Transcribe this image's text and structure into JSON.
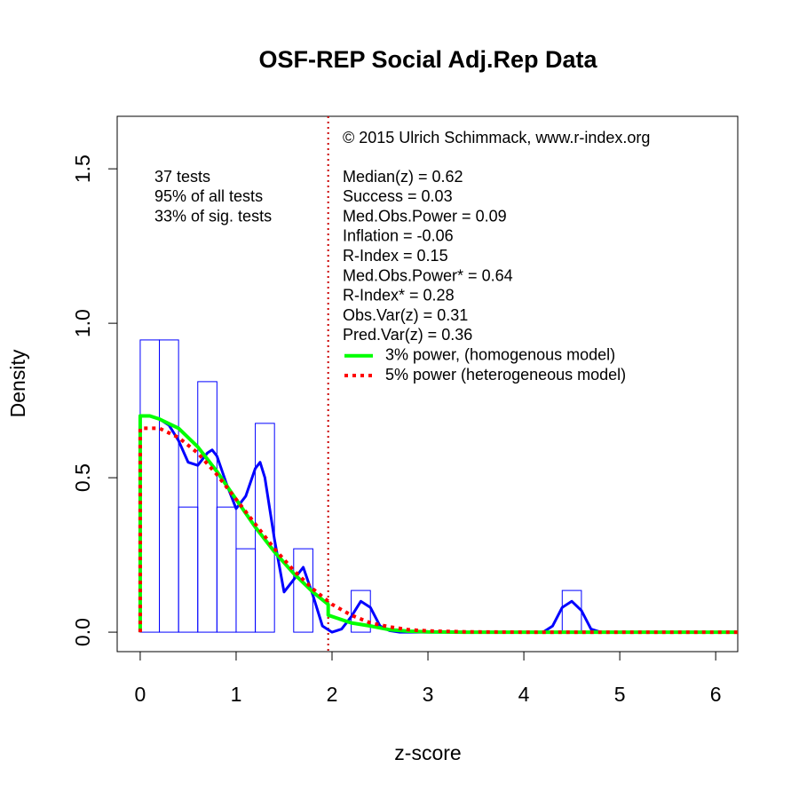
{
  "chart_data": {
    "type": "histogram",
    "title": "OSF-REP Social Adj.Rep Data",
    "xlabel": "z-score",
    "ylabel": "Density",
    "bins": [
      0,
      0.2,
      0.4,
      0.6,
      0.8,
      1.0,
      1.2,
      1.4,
      1.6,
      1.8,
      2.0,
      2.2,
      2.4,
      2.6,
      2.8,
      3.0,
      3.2,
      3.4,
      3.6,
      3.8,
      4.0,
      4.2,
      4.4,
      4.6
    ],
    "values": [
      0.946,
      0.946,
      0.405,
      0.811,
      0.405,
      0.27,
      0.676,
      0,
      0.27,
      0,
      0,
      0.135,
      0,
      0,
      0,
      0,
      0,
      0,
      0,
      0,
      0,
      0,
      0.135
    ],
    "color": "#0000ff",
    "xlim": [
      -0.24,
      6.23
    ],
    "ylim": [
      -0.063,
      1.67
    ],
    "xticks": [
      0,
      1,
      2,
      3,
      4,
      5,
      6
    ],
    "yticks": [
      {
        "value": 0,
        "label": "0.0"
      },
      0.5,
      {
        "value": 1,
        "label": "1.0"
      },
      1.5
    ],
    "vline": {
      "x": 1.96,
      "color": "#cc0000"
    },
    "series": [
      {
        "color": "#0000ff",
        "style": "solid",
        "x": [
          0,
          0.1,
          0.2,
          0.3,
          0.4,
          0.5,
          0.6,
          0.7,
          0.75,
          0.8,
          0.9,
          1.0,
          1.1,
          1.2,
          1.25,
          1.3,
          1.4,
          1.5,
          1.6,
          1.7,
          1.8,
          1.9,
          2.0,
          2.1,
          2.2,
          2.3,
          2.4,
          2.5,
          2.6,
          2.7,
          3.0,
          3.5,
          4.0,
          4.2,
          4.3,
          4.4,
          4.5,
          4.6,
          4.7,
          4.8
        ],
        "values": [
          0.7,
          0.7,
          0.69,
          0.67,
          0.62,
          0.55,
          0.54,
          0.58,
          0.59,
          0.57,
          0.48,
          0.4,
          0.44,
          0.53,
          0.55,
          0.5,
          0.3,
          0.13,
          0.17,
          0.21,
          0.12,
          0.02,
          0.0,
          0.01,
          0.05,
          0.1,
          0.08,
          0.02,
          0.005,
          0,
          0,
          0,
          0,
          0,
          0.02,
          0.08,
          0.1,
          0.07,
          0.01,
          0
        ]
      },
      {
        "name": "3% power, (homogenous model)",
        "color": "#00ff00",
        "style": "solid",
        "x": [
          0,
          0,
          0.1,
          0.2,
          0.4,
          0.6,
          0.8,
          1.0,
          1.2,
          1.4,
          1.6,
          1.8,
          1.96,
          1.96,
          2.2,
          2.4,
          2.6,
          2.8,
          3.0,
          3.4,
          6.23
        ],
        "values": [
          0,
          0.7,
          0.7,
          0.69,
          0.66,
          0.6,
          0.52,
          0.43,
          0.34,
          0.26,
          0.19,
          0.13,
          0.09,
          0.055,
          0.03,
          0.02,
          0.008,
          0.003,
          0.001,
          0,
          0
        ]
      },
      {
        "name": "5% power (heterogeneous model)",
        "color": "#ff0000",
        "style": "dotted",
        "x": [
          0,
          0,
          0.2,
          0.4,
          0.6,
          0.8,
          1.0,
          1.2,
          1.4,
          1.6,
          1.8,
          2.0,
          2.2,
          2.4,
          2.6,
          2.8,
          3.0,
          3.4,
          4.0,
          6.23
        ],
        "values": [
          0,
          0.66,
          0.66,
          0.63,
          0.58,
          0.51,
          0.43,
          0.35,
          0.27,
          0.2,
          0.14,
          0.09,
          0.055,
          0.03,
          0.017,
          0.008,
          0.004,
          0.001,
          0,
          0
        ]
      }
    ],
    "copyright": "© 2015 Ulrich Schimmack, www.r-index.org",
    "annotations_left": [
      "37 tests",
      "95% of all tests",
      "33% of sig. tests"
    ],
    "annotations_right": [
      "Median(z) = 0.62",
      "Success = 0.03",
      "Med.Obs.Power = 0.09",
      "Inflation = -0.06",
      "R-Index = 0.15",
      "Med.Obs.Power* = 0.64",
      "R-Index* = 0.28",
      "Obs.Var(z) = 0.31",
      "Pred.Var(z) = 0.36"
    ]
  }
}
